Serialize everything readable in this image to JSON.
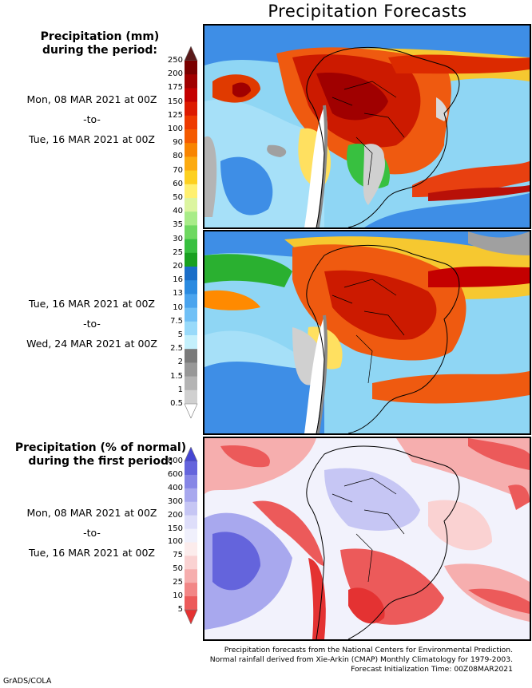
{
  "title": "Precipitation Forecasts",
  "panel1": {
    "header_line1": "Precipitation (mm)",
    "header_line2": "during the period:",
    "period_start": "Mon, 08 MAR 2021 at 00Z",
    "period_sep": "-to-",
    "period_end": "Tue, 16 MAR 2021 at 00Z"
  },
  "panel2": {
    "period_start": "Tue, 16 MAR 2021 at 00Z",
    "period_sep": "-to-",
    "period_end": "Wed, 24 MAR 2021 at 00Z"
  },
  "panel3": {
    "header_line1": "Precipitation (% of normal)",
    "header_line2": "during the first period:",
    "period_start": "Mon, 08 MAR 2021 at 00Z",
    "period_sep": "-to-",
    "period_end": "Tue, 16 MAR 2021 at 00Z"
  },
  "mm_scale": {
    "labels": [
      "250",
      "200",
      "175",
      "150",
      "125",
      "100",
      "90",
      "80",
      "70",
      "60",
      "50",
      "40",
      "35",
      "30",
      "25",
      "20",
      "16",
      "13",
      "10",
      "7.5",
      "5",
      "2.5",
      "2",
      "1.5",
      "1",
      "0.5"
    ],
    "colors": [
      "#5a1a1a",
      "#7a0000",
      "#a00000",
      "#c40000",
      "#dc1a00",
      "#ee3a00",
      "#f45a00",
      "#f88400",
      "#fcaa10",
      "#fdd020",
      "#fff070",
      "#dcf5a0",
      "#a8ec88",
      "#6ed860",
      "#38c040",
      "#18a020",
      "#1a6ec8",
      "#2a8ae0",
      "#4aa4ee",
      "#70c0f6",
      "#98dafa",
      "#c4f0fc",
      "#7a7a7a",
      "#989898",
      "#b4b4b4",
      "#d0d0d0",
      "#ffffff"
    ]
  },
  "pct_scale": {
    "labels": [
      "800",
      "600",
      "400",
      "300",
      "200",
      "150",
      "100",
      "75",
      "50",
      "25",
      "10",
      "5"
    ],
    "colors": [
      "#4646d2",
      "#6464dc",
      "#8686e6",
      "#a8a8ee",
      "#c6c6f4",
      "#dedefa",
      "#f0f0fc",
      "#fcecec",
      "#fad2d2",
      "#f6aeae",
      "#f28686",
      "#ec5a5a",
      "#e43232"
    ]
  },
  "footer": {
    "line1": "Precipitation forecasts from the National Centers for Environmental Prediction.",
    "line2": "Normal rainfall derived from Xie-Arkin (CMAP) Monthly Climatology for 1979-2003.",
    "line3": "Forecast Initialization Time: 00Z08MAR2021"
  },
  "credit": "GrADS/COLA"
}
